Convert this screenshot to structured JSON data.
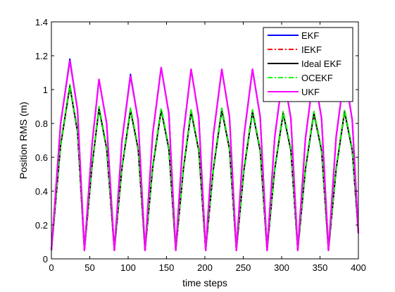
{
  "chart_data": {
    "type": "line",
    "xlabel": "time steps",
    "ylabel": "Position RMS (m)",
    "xlim": [
      0,
      400
    ],
    "ylim": [
      0,
      1.4
    ],
    "xticks": [
      0,
      50,
      100,
      150,
      200,
      250,
      300,
      350,
      400
    ],
    "yticks": [
      0,
      0.2,
      0.4,
      0.6,
      0.8,
      1,
      1.2,
      1.4
    ],
    "xtick_labels": [
      "0",
      "50",
      "100",
      "150",
      "200",
      "250",
      "300",
      "350",
      "400"
    ],
    "ytick_labels": [
      "0",
      "0.2",
      "0.4",
      "0.6",
      "0.8",
      "1",
      "1.2",
      "1.4"
    ],
    "grid": false,
    "legend_position": "top-right",
    "series": [
      {
        "name": "EKF",
        "color": "#0000ff",
        "dash": "solid",
        "points": [
          [
            0,
            0.05
          ],
          [
            12,
            0.8
          ],
          [
            24,
            1.18
          ],
          [
            34,
            0.88
          ],
          [
            43,
            0.05
          ],
          [
            53,
            0.68
          ],
          [
            62,
            1.06
          ],
          [
            72,
            0.8
          ],
          [
            82,
            0.05
          ],
          [
            92,
            0.7
          ],
          [
            103,
            1.09
          ],
          [
            113,
            0.82
          ],
          [
            122,
            0.05
          ],
          [
            132,
            0.74
          ],
          [
            143,
            1.13
          ],
          [
            153,
            0.86
          ],
          [
            162,
            0.05
          ],
          [
            172,
            0.74
          ],
          [
            182,
            1.12
          ],
          [
            192,
            0.84
          ],
          [
            201,
            0.05
          ],
          [
            211,
            0.73
          ],
          [
            222,
            1.12
          ],
          [
            232,
            0.84
          ],
          [
            241,
            0.05
          ],
          [
            251,
            0.73
          ],
          [
            262,
            1.12
          ],
          [
            272,
            0.84
          ],
          [
            281,
            0.05
          ],
          [
            291,
            0.72
          ],
          [
            302,
            1.1
          ],
          [
            312,
            0.83
          ],
          [
            321,
            0.05
          ],
          [
            331,
            0.71
          ],
          [
            342,
            1.1
          ],
          [
            352,
            0.83
          ],
          [
            361,
            0.05
          ],
          [
            371,
            0.72
          ],
          [
            382,
            1.1
          ],
          [
            392,
            0.82
          ],
          [
            400,
            0.15
          ]
        ]
      },
      {
        "name": "IEKF",
        "color": "#ff0000",
        "dash": "dashdot",
        "points": [
          [
            0,
            0.05
          ],
          [
            12,
            0.68
          ],
          [
            24,
            1.03
          ],
          [
            34,
            0.76
          ],
          [
            43,
            0.05
          ],
          [
            53,
            0.56
          ],
          [
            62,
            0.9
          ],
          [
            72,
            0.66
          ],
          [
            82,
            0.05
          ],
          [
            92,
            0.55
          ],
          [
            103,
            0.89
          ],
          [
            113,
            0.66
          ],
          [
            122,
            0.05
          ],
          [
            132,
            0.55
          ],
          [
            143,
            0.89
          ],
          [
            153,
            0.66
          ],
          [
            162,
            0.05
          ],
          [
            172,
            0.54
          ],
          [
            182,
            0.88
          ],
          [
            192,
            0.65
          ],
          [
            201,
            0.05
          ],
          [
            211,
            0.54
          ],
          [
            222,
            0.89
          ],
          [
            232,
            0.66
          ],
          [
            241,
            0.05
          ],
          [
            251,
            0.54
          ],
          [
            262,
            0.88
          ],
          [
            272,
            0.65
          ],
          [
            281,
            0.05
          ],
          [
            291,
            0.54
          ],
          [
            302,
            0.87
          ],
          [
            312,
            0.65
          ],
          [
            321,
            0.05
          ],
          [
            331,
            0.54
          ],
          [
            342,
            0.87
          ],
          [
            352,
            0.65
          ],
          [
            361,
            0.05
          ],
          [
            371,
            0.54
          ],
          [
            382,
            0.88
          ],
          [
            392,
            0.65
          ],
          [
            400,
            0.15
          ]
        ]
      },
      {
        "name": "Ideal EKF",
        "color": "#000000",
        "dash": "solid",
        "points": [
          [
            0,
            0.05
          ],
          [
            12,
            0.67
          ],
          [
            24,
            1.02
          ],
          [
            34,
            0.75
          ],
          [
            43,
            0.05
          ],
          [
            53,
            0.55
          ],
          [
            62,
            0.89
          ],
          [
            72,
            0.65
          ],
          [
            82,
            0.05
          ],
          [
            92,
            0.54
          ],
          [
            103,
            0.88
          ],
          [
            113,
            0.65
          ],
          [
            122,
            0.05
          ],
          [
            132,
            0.54
          ],
          [
            143,
            0.88
          ],
          [
            153,
            0.65
          ],
          [
            162,
            0.05
          ],
          [
            172,
            0.53
          ],
          [
            182,
            0.87
          ],
          [
            192,
            0.64
          ],
          [
            201,
            0.05
          ],
          [
            211,
            0.53
          ],
          [
            222,
            0.88
          ],
          [
            232,
            0.65
          ],
          [
            241,
            0.05
          ],
          [
            251,
            0.53
          ],
          [
            262,
            0.87
          ],
          [
            272,
            0.64
          ],
          [
            281,
            0.05
          ],
          [
            291,
            0.53
          ],
          [
            302,
            0.86
          ],
          [
            312,
            0.64
          ],
          [
            321,
            0.05
          ],
          [
            331,
            0.53
          ],
          [
            342,
            0.86
          ],
          [
            352,
            0.64
          ],
          [
            361,
            0.05
          ],
          [
            371,
            0.53
          ],
          [
            382,
            0.87
          ],
          [
            392,
            0.64
          ],
          [
            400,
            0.15
          ]
        ]
      },
      {
        "name": "OCEKF",
        "color": "#00ff00",
        "dash": "dashdot",
        "points": [
          [
            0,
            0.05
          ],
          [
            12,
            0.68
          ],
          [
            24,
            1.03
          ],
          [
            34,
            0.76
          ],
          [
            43,
            0.05
          ],
          [
            53,
            0.56
          ],
          [
            62,
            0.9
          ],
          [
            72,
            0.66
          ],
          [
            82,
            0.05
          ],
          [
            92,
            0.55
          ],
          [
            103,
            0.89
          ],
          [
            113,
            0.66
          ],
          [
            122,
            0.05
          ],
          [
            132,
            0.55
          ],
          [
            143,
            0.89
          ],
          [
            153,
            0.66
          ],
          [
            162,
            0.05
          ],
          [
            172,
            0.54
          ],
          [
            182,
            0.88
          ],
          [
            192,
            0.65
          ],
          [
            201,
            0.05
          ],
          [
            211,
            0.54
          ],
          [
            222,
            0.89
          ],
          [
            232,
            0.66
          ],
          [
            241,
            0.05
          ],
          [
            251,
            0.54
          ],
          [
            262,
            0.88
          ],
          [
            272,
            0.65
          ],
          [
            281,
            0.05
          ],
          [
            291,
            0.54
          ],
          [
            302,
            0.87
          ],
          [
            312,
            0.65
          ],
          [
            321,
            0.05
          ],
          [
            331,
            0.54
          ],
          [
            342,
            0.87
          ],
          [
            352,
            0.65
          ],
          [
            361,
            0.05
          ],
          [
            371,
            0.54
          ],
          [
            382,
            0.88
          ],
          [
            392,
            0.65
          ],
          [
            400,
            0.15
          ]
        ]
      },
      {
        "name": "UKF",
        "color": "#ff00ff",
        "dash": "solid",
        "points": [
          [
            0,
            0.05
          ],
          [
            12,
            0.8
          ],
          [
            24,
            1.17
          ],
          [
            34,
            0.88
          ],
          [
            43,
            0.05
          ],
          [
            53,
            0.68
          ],
          [
            62,
            1.06
          ],
          [
            72,
            0.8
          ],
          [
            82,
            0.05
          ],
          [
            92,
            0.7
          ],
          [
            103,
            1.08
          ],
          [
            113,
            0.82
          ],
          [
            122,
            0.05
          ],
          [
            132,
            0.74
          ],
          [
            143,
            1.13
          ],
          [
            153,
            0.86
          ],
          [
            162,
            0.05
          ],
          [
            172,
            0.74
          ],
          [
            182,
            1.12
          ],
          [
            192,
            0.84
          ],
          [
            201,
            0.05
          ],
          [
            211,
            0.73
          ],
          [
            222,
            1.12
          ],
          [
            232,
            0.84
          ],
          [
            241,
            0.05
          ],
          [
            251,
            0.73
          ],
          [
            262,
            1.12
          ],
          [
            272,
            0.84
          ],
          [
            281,
            0.05
          ],
          [
            291,
            0.72
          ],
          [
            302,
            1.1
          ],
          [
            312,
            0.83
          ],
          [
            321,
            0.05
          ],
          [
            331,
            0.71
          ],
          [
            342,
            1.1
          ],
          [
            352,
            0.83
          ],
          [
            361,
            0.05
          ],
          [
            371,
            0.72
          ],
          [
            382,
            1.1
          ],
          [
            392,
            0.82
          ],
          [
            400,
            0.15
          ]
        ]
      }
    ]
  }
}
